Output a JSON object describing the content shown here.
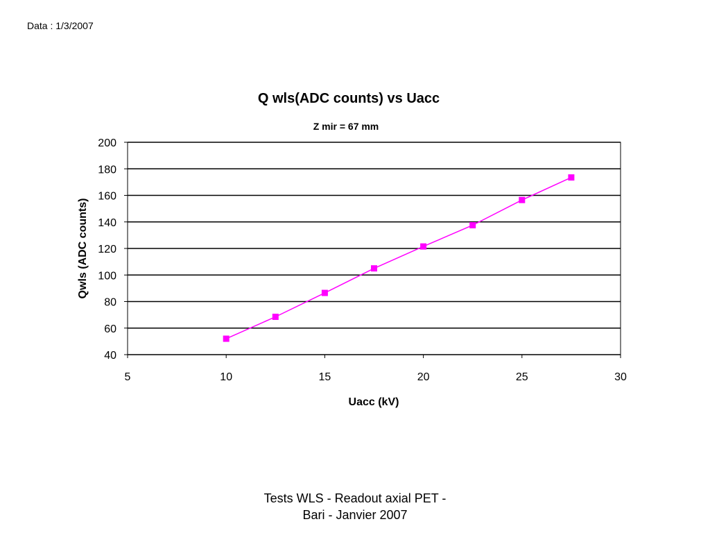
{
  "header": {
    "date_text": "Data : 1/3/2007"
  },
  "footer": {
    "line1": "Tests WLS - Readout axial PET -",
    "line2": "Bari - Janvier 2007"
  },
  "chart_data": {
    "type": "line",
    "title": "Q wls(ADC counts) vs Uacc",
    "subtitle": "Z mir = 67 mm",
    "xlabel": "Uacc (kV)",
    "ylabel": "Qwls (ADC counts)",
    "xlim": [
      5,
      30
    ],
    "ylim": [
      40,
      200
    ],
    "xticks": [
      5,
      10,
      15,
      20,
      25,
      30
    ],
    "yticks": [
      40,
      60,
      80,
      100,
      120,
      140,
      160,
      180,
      200
    ],
    "grid": "horizontal",
    "legend": "none",
    "series": [
      {
        "x": [
          10,
          12.5,
          15,
          17.5,
          20,
          22.5,
          25,
          27.5
        ],
        "y": [
          52,
          68.5,
          86.5,
          105,
          121.5,
          137.5,
          156.5,
          173.5
        ],
        "color": "#ff00ff",
        "marker": "square"
      }
    ]
  }
}
